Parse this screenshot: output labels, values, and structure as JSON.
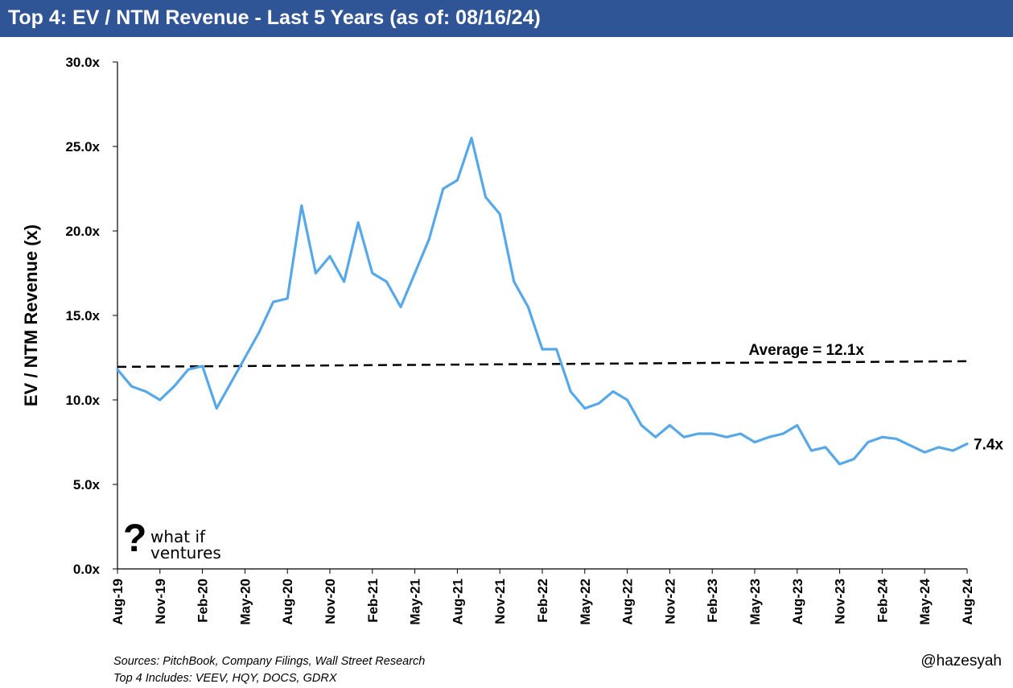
{
  "header": {
    "title": "Top 4: EV / NTM Revenue - Last 5 Years (as of: 08/16/24)",
    "bg_color": "#2f5597"
  },
  "footer": {
    "sources": "Sources: PitchBook, Company Filings, Wall Street Research",
    "includes": "Top 4 Includes: VEEV, HQY, DOCS, GDRX",
    "handle": "@hazesyah"
  },
  "logo": {
    "mark": "?",
    "line1": "what if",
    "line2": "ventures"
  },
  "chart_data": {
    "type": "line",
    "ylabel": "EV / NTM Revenue (x)",
    "xlabel": "",
    "ylim": [
      0,
      30
    ],
    "yticks": [
      "0.0x",
      "5.0x",
      "10.0x",
      "15.0x",
      "20.0x",
      "25.0x",
      "30.0x"
    ],
    "xticks": [
      "Aug-19",
      "Nov-19",
      "Feb-20",
      "May-20",
      "Aug-20",
      "Nov-20",
      "Feb-21",
      "May-21",
      "Aug-21",
      "Nov-21",
      "Feb-22",
      "May-22",
      "Aug-22",
      "Nov-22",
      "Feb-23",
      "May-23",
      "Aug-23",
      "Nov-23",
      "Feb-24",
      "May-24",
      "Aug-24"
    ],
    "grid": false,
    "line_color": "#56a8e8",
    "series": [
      {
        "x": [
          "Aug-19",
          "Sep-19",
          "Oct-19",
          "Nov-19",
          "Dec-19",
          "Jan-20",
          "Feb-20",
          "Mar-20",
          "Apr-20",
          "May-20",
          "Jun-20",
          "Jul-20",
          "Aug-20",
          "Sep-20",
          "Oct-20",
          "Nov-20",
          "Dec-20",
          "Jan-21",
          "Feb-21",
          "Mar-21",
          "Apr-21",
          "May-21",
          "Jun-21",
          "Jul-21",
          "Aug-21",
          "Sep-21",
          "Oct-21",
          "Nov-21",
          "Dec-21",
          "Jan-22",
          "Feb-22",
          "Mar-22",
          "Apr-22",
          "May-22",
          "Jun-22",
          "Jul-22",
          "Aug-22",
          "Sep-22",
          "Oct-22",
          "Nov-22",
          "Dec-22",
          "Jan-23",
          "Feb-23",
          "Mar-23",
          "Apr-23",
          "May-23",
          "Jun-23",
          "Jul-23",
          "Aug-23",
          "Sep-23",
          "Oct-23",
          "Nov-23",
          "Dec-23",
          "Jan-24",
          "Feb-24",
          "Mar-24",
          "Apr-24",
          "May-24",
          "Jun-24",
          "Jul-24",
          "Aug-24"
        ],
        "values": [
          11.8,
          10.8,
          10.5,
          10.0,
          10.8,
          11.8,
          12.0,
          9.5,
          11.0,
          12.5,
          14.0,
          15.8,
          16.0,
          21.5,
          17.5,
          18.5,
          17.0,
          20.5,
          17.5,
          17.0,
          15.5,
          17.5,
          19.5,
          22.5,
          23.0,
          25.5,
          22.0,
          21.0,
          17.0,
          15.5,
          13.0,
          13.0,
          10.5,
          9.5,
          9.8,
          10.5,
          10.0,
          8.5,
          7.8,
          8.5,
          7.8,
          8.0,
          8.0,
          7.8,
          8.0,
          7.5,
          7.8,
          8.0,
          8.5,
          7.0,
          7.2,
          6.2,
          6.5,
          7.5,
          7.8,
          7.7,
          7.3,
          6.9,
          7.2,
          7.0,
          7.4
        ]
      }
    ],
    "average": {
      "label": "Average = 12.1x",
      "value": 12.1
    },
    "end_label": "7.4x"
  }
}
